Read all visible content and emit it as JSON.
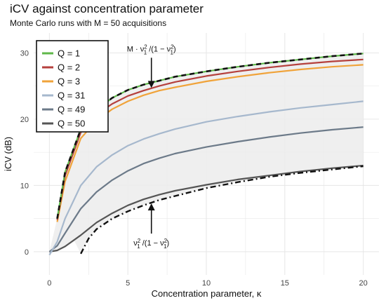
{
  "chart_data": {
    "type": "line",
    "title": "iCV against concentration parameter",
    "subtitle": "Monte Carlo runs with M = 50 acquisitions",
    "xlabel": "Concentration parameter,  κ",
    "ylabel": "iCV (dB)",
    "xlim": [
      -1,
      21
    ],
    "ylim": [
      -3.5,
      33
    ],
    "x_ticks": [
      0,
      5,
      10,
      15,
      20
    ],
    "y_ticks": [
      0,
      10,
      20,
      30
    ],
    "grid": true,
    "legend_position": "top-left",
    "x": [
      0.0,
      0.5,
      1.0,
      2.0,
      3.0,
      4.0,
      5.0,
      6.0,
      7.0,
      8.0,
      10.0,
      12.0,
      14.0,
      16.0,
      18.0,
      20.0
    ],
    "series": [
      {
        "name": "Q = 1",
        "color": "#5fb84a",
        "values": [
          null,
          5.0,
          12.0,
          18.5,
          21.4,
          23.2,
          24.4,
          25.2,
          25.8,
          26.4,
          27.2,
          27.9,
          28.5,
          29.0,
          29.5,
          29.9
        ]
      },
      {
        "name": "Q = 2",
        "color": "#b5403d",
        "values": [
          null,
          4.8,
          11.5,
          18.0,
          20.7,
          22.3,
          23.5,
          24.3,
          25.0,
          25.6,
          26.5,
          27.2,
          27.8,
          28.3,
          28.7,
          29.0
        ]
      },
      {
        "name": "Q = 3",
        "color": "#f0a33a",
        "values": [
          null,
          4.5,
          10.6,
          17.1,
          19.8,
          21.5,
          22.7,
          23.6,
          24.3,
          24.8,
          25.7,
          26.4,
          27.0,
          27.5,
          27.9,
          28.2
        ]
      },
      {
        "name": "Q = 31",
        "color": "#a6b8cd",
        "values": [
          -0.5,
          1.5,
          5.0,
          10.0,
          12.8,
          14.6,
          16.0,
          17.0,
          17.8,
          18.5,
          19.6,
          20.4,
          21.1,
          21.7,
          22.2,
          22.7
        ]
      },
      {
        "name": "Q = 49",
        "color": "#6c7a89",
        "values": [
          0.0,
          0.9,
          2.8,
          6.5,
          9.0,
          10.8,
          12.2,
          13.3,
          14.1,
          14.8,
          15.8,
          16.6,
          17.3,
          17.9,
          18.4,
          18.8
        ]
      },
      {
        "name": "Q = 50",
        "color": "#555555",
        "values": [
          0.0,
          0.2,
          0.8,
          2.5,
          4.4,
          5.8,
          7.0,
          7.9,
          8.6,
          9.2,
          10.1,
          10.9,
          11.5,
          12.1,
          12.6,
          13.0
        ]
      }
    ],
    "bounds": {
      "upper": {
        "label_prefix": "M · ",
        "x": [
          0.5,
          1.0,
          2.0,
          3.0,
          4.0,
          5.0,
          6.0,
          7.0,
          8.0,
          10.0,
          12.0,
          14.0,
          16.0,
          18.0,
          20.0
        ],
        "values": [
          5.0,
          12.0,
          18.5,
          21.4,
          23.2,
          24.4,
          25.2,
          25.8,
          26.4,
          27.2,
          27.9,
          28.5,
          29.0,
          29.5,
          29.9
        ]
      },
      "lower": {
        "x": [
          2.0,
          2.5,
          3.0,
          4.0,
          5.0,
          6.0,
          7.0,
          8.0,
          10.0,
          12.0,
          14.0,
          16.0,
          18.0,
          20.0
        ],
        "values": [
          -0.3,
          2.0,
          3.4,
          5.0,
          6.1,
          7.0,
          7.8,
          8.4,
          9.6,
          10.5,
          11.3,
          11.9,
          12.4,
          12.9
        ]
      }
    },
    "annotations": [
      {
        "name": "upper-bound-annotation",
        "x": 6.5,
        "y": 24.5
      },
      {
        "name": "lower-bound-annotation",
        "x": 6.5,
        "y": 7.5
      }
    ]
  }
}
